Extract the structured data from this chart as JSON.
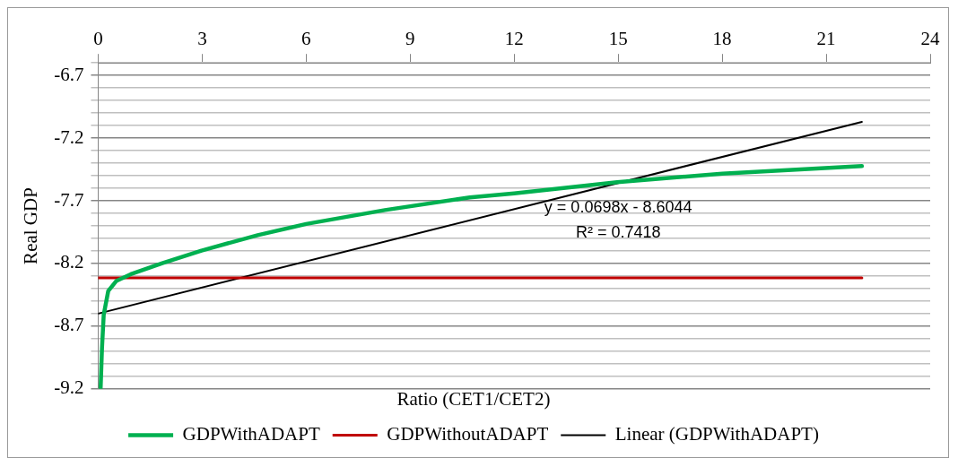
{
  "chart_data": {
    "type": "line",
    "xlabel": "Ratio (CET1/CET2)",
    "ylabel": "Real GDP",
    "xlim": [
      0,
      24
    ],
    "xticks": [
      0,
      3,
      6,
      9,
      12,
      15,
      18,
      21,
      24
    ],
    "ylim": [
      -9.2,
      -6.6
    ],
    "yticks": [
      -9.2,
      {
        "value": -9.1,
        "label": null
      },
      {
        "value": -9.0,
        "label": null
      },
      {
        "value": -8.9,
        "label": null
      },
      {
        "value": -8.8,
        "label": null
      },
      -8.7,
      {
        "value": -8.6,
        "label": null
      },
      {
        "value": -8.5,
        "label": null
      },
      {
        "value": -8.4,
        "label": null
      },
      {
        "value": -8.3,
        "label": null
      },
      -8.2,
      {
        "value": -8.1,
        "label": null
      },
      {
        "value": -8.0,
        "label": null
      },
      {
        "value": -7.9,
        "label": null
      },
      {
        "value": -7.8,
        "label": null
      },
      -7.7,
      {
        "value": -7.6,
        "label": null
      },
      {
        "value": -7.5,
        "label": null
      },
      {
        "value": -7.4,
        "label": null
      },
      {
        "value": -7.3,
        "label": null
      },
      -7.2,
      {
        "value": -7.1,
        "label": null
      },
      {
        "value": -7.0,
        "label": null
      },
      {
        "value": -6.9,
        "label": null
      },
      {
        "value": -6.8,
        "label": null
      },
      -6.7,
      {
        "value": -6.6,
        "label": null
      }
    ],
    "grid": "y",
    "legend": "bottom",
    "marker": "none",
    "line_style": "solid",
    "series": [
      {
        "name": "GDPWithADAPT",
        "color": "#00b050",
        "x": [
          0.07,
          0.11,
          0.16,
          0.29,
          0.52,
          0.94,
          1.85,
          2.98,
          4.6,
          6.0,
          8.27,
          10.72,
          12.0,
          14.97,
          18.0,
          22.03
        ],
        "values": [
          -9.2,
          -8.876,
          -8.609,
          -8.42,
          -8.34,
          -8.286,
          -8.197,
          -8.097,
          -7.974,
          -7.885,
          -7.774,
          -7.673,
          -7.64,
          -7.551,
          -7.484,
          -7.423
        ]
      },
      {
        "name": "GDPWithoutADAPT",
        "color": "#c00000",
        "x": [
          0,
          22.03
        ],
        "values": [
          -8.315,
          -8.315
        ]
      },
      {
        "name": "Linear (GDPWithADAPT)",
        "color": "#000000",
        "x": [
          0,
          22.03
        ],
        "values": [
          -8.6,
          -7.07
        ]
      }
    ],
    "annotations": [
      "y = 0.0698x - 8.6044",
      "R² = 0.7418"
    ]
  }
}
